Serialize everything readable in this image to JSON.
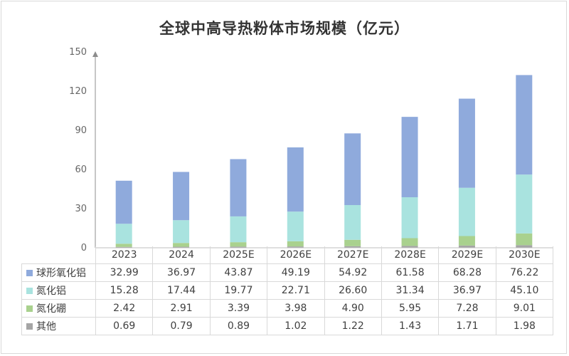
{
  "chart_data": {
    "type": "bar",
    "stacked": true,
    "title": "全球中高导热粉体市场规模（亿元）",
    "categories": [
      "2023",
      "2024",
      "2025E",
      "2026E",
      "2027E",
      "2028E",
      "2029E",
      "2030E"
    ],
    "ylim": [
      0,
      150
    ],
    "yticks": [
      "0",
      "30",
      "60",
      "90",
      "120",
      "150"
    ],
    "grid": false,
    "legend": "data-table",
    "series": [
      {
        "name": "球形氧化铝",
        "color": "#8faadc",
        "values": [
          "32.99",
          "36.97",
          "43.87",
          "49.19",
          "54.92",
          "61.58",
          "68.28",
          "76.22"
        ]
      },
      {
        "name": "氮化铝",
        "color": "#a9e3df",
        "values": [
          "15.28",
          "17.44",
          "19.77",
          "22.71",
          "26.60",
          "31.34",
          "36.97",
          "45.10"
        ]
      },
      {
        "name": "氮化硼",
        "color": "#a9d18e",
        "values": [
          "2.42",
          "2.91",
          "3.39",
          "3.98",
          "4.90",
          "5.95",
          "7.28",
          "9.01"
        ]
      },
      {
        "name": "其他",
        "color": "#a5a5a5",
        "values": [
          "0.69",
          "0.79",
          "0.89",
          "1.02",
          "1.22",
          "1.43",
          "1.71",
          "1.98"
        ]
      }
    ]
  }
}
